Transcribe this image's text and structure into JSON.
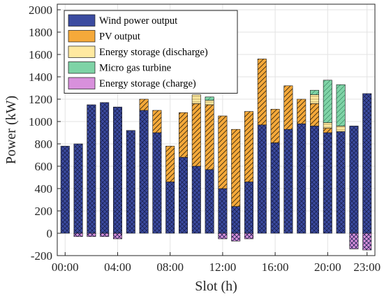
{
  "chart_data": {
    "type": "bar",
    "stacked": true,
    "xlabel": "Slot (h)",
    "ylabel": "Power (kW)",
    "ylim": [
      -200,
      2050
    ],
    "yticks": [
      -200,
      0,
      200,
      400,
      600,
      800,
      1000,
      1200,
      1400,
      1600,
      1800,
      2000
    ],
    "xticks": [
      {
        "slot": 0,
        "label": "00:00"
      },
      {
        "slot": 4,
        "label": "04:00"
      },
      {
        "slot": 8,
        "label": "08:00"
      },
      {
        "slot": 12,
        "label": "12:00"
      },
      {
        "slot": 16,
        "label": "16:00"
      },
      {
        "slot": 20,
        "label": "20:00"
      },
      {
        "slot": 23,
        "label": "23:00"
      }
    ],
    "grid": true,
    "legend_position": "top-left",
    "categories": [
      0,
      1,
      2,
      3,
      4,
      5,
      6,
      7,
      8,
      9,
      10,
      11,
      12,
      13,
      14,
      15,
      16,
      17,
      18,
      19,
      20,
      21,
      22,
      23
    ],
    "series": [
      {
        "name": "Wind power output",
        "color": "#3b4ba0",
        "pattern": "crosshatch",
        "values": [
          780,
          800,
          1150,
          1170,
          1130,
          920,
          1100,
          900,
          460,
          680,
          600,
          570,
          400,
          240,
          460,
          970,
          810,
          930,
          980,
          960,
          900,
          910,
          960,
          1250
        ]
      },
      {
        "name": "PV output",
        "color": "#f5a93a",
        "pattern": "diagonal",
        "values": [
          0,
          0,
          0,
          0,
          0,
          0,
          100,
          200,
          320,
          400,
          560,
          580,
          650,
          690,
          630,
          590,
          300,
          390,
          220,
          200,
          40,
          0,
          0,
          0
        ]
      },
      {
        "name": "Energy storage (discharge)",
        "color": "#ffe9a0",
        "pattern": "horizontal",
        "values": [
          0,
          0,
          0,
          0,
          0,
          0,
          0,
          0,
          0,
          0,
          80,
          40,
          0,
          0,
          0,
          0,
          0,
          0,
          0,
          80,
          50,
          50,
          0,
          0
        ]
      },
      {
        "name": "Micro gas turbine",
        "color": "#7ed3a6",
        "pattern": "vertical",
        "values": [
          0,
          0,
          0,
          0,
          0,
          0,
          0,
          0,
          0,
          0,
          0,
          30,
          0,
          0,
          0,
          0,
          0,
          0,
          0,
          40,
          380,
          370,
          0,
          0
        ]
      },
      {
        "name": "Energy storage (charge)",
        "color": "#d890dc",
        "pattern": "crosshatch",
        "values": [
          0,
          -30,
          -30,
          -30,
          -50,
          0,
          0,
          0,
          0,
          0,
          0,
          0,
          -50,
          -70,
          -50,
          0,
          0,
          0,
          0,
          0,
          0,
          0,
          -140,
          -150
        ]
      }
    ]
  }
}
